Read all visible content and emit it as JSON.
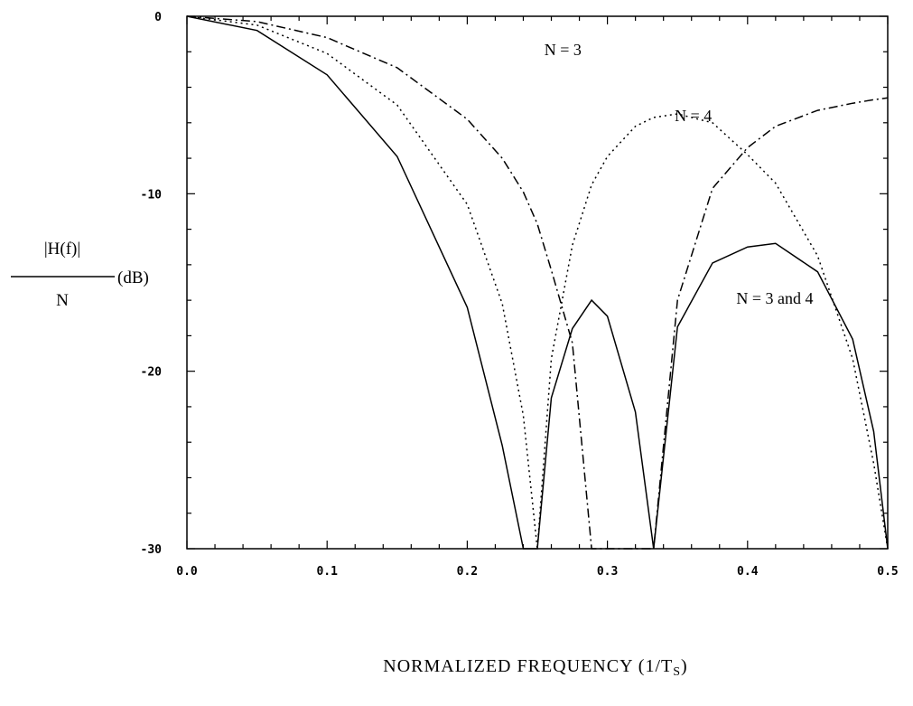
{
  "chart_data": {
    "type": "line",
    "title": "",
    "xlabel": "NORMALIZED FREQUENCY (1/Ts)",
    "xlabel_main": "NORMALIZED FREQUENCY ",
    "xlabel_paren_open": "(1/T",
    "xlabel_sub": "S",
    "xlabel_paren_close": ")",
    "ylabel": "|H(f)|/N (dB)",
    "ylabel_numerator": "|H(f)|",
    "ylabel_denominator": "N",
    "ylabel_unit": "(dB)",
    "xlim": [
      0.0,
      0.5
    ],
    "ylim": [
      -30,
      0
    ],
    "x_major_ticks": [
      0.0,
      0.1,
      0.2,
      0.3,
      0.4,
      0.5
    ],
    "x_tick_labels": [
      "0.0",
      "0.1",
      "0.2",
      "0.3",
      "0.4",
      "0.5"
    ],
    "x_minor_step": 0.02,
    "y_major_ticks": [
      0,
      -10,
      -20,
      -30
    ],
    "y_tick_labels": [
      "0",
      "-10",
      "-20",
      "-30"
    ],
    "y_minor_step": 2,
    "grid": false,
    "legend": "none",
    "annotations": [
      {
        "text": "N = 3",
        "x": 0.255,
        "y": -2.2
      },
      {
        "text": "N = 4",
        "x": 0.348,
        "y": -5.9
      },
      {
        "text": "N = 3 and 4",
        "x": 0.392,
        "y": -16.2
      }
    ],
    "x": [
      0.0,
      0.05,
      0.1,
      0.15,
      0.2,
      0.225,
      0.24,
      0.25,
      0.26,
      0.275,
      0.2887,
      0.3,
      0.32,
      0.333,
      0.35,
      0.375,
      0.4,
      0.42,
      0.45,
      0.475,
      0.49,
      0.5
    ],
    "series": [
      {
        "style": "dash-dot",
        "values": [
          0.0,
          -0.3,
          -1.2,
          -2.9,
          -5.8,
          -8.0,
          -9.9,
          -11.7,
          -14.3,
          -18.4,
          -30.0,
          -30.0,
          -30.0,
          -30.0,
          -16.0,
          -9.7,
          -7.4,
          -6.2,
          -5.3,
          -4.9,
          -4.7,
          -4.6
        ]
      },
      {
        "style": "dotted",
        "values": [
          0.0,
          -0.5,
          -2.1,
          -5.0,
          -10.6,
          -16.2,
          -22.5,
          -30.0,
          -19.3,
          -12.9,
          -9.5,
          -7.9,
          -6.2,
          -5.7,
          -5.5,
          -6.0,
          -7.8,
          -9.4,
          -13.5,
          -19.3,
          -25.2,
          -30.0
        ]
      },
      {
        "style": "solid",
        "values": [
          0.0,
          -0.8,
          -3.3,
          -7.9,
          -16.4,
          -24.2,
          -30.0,
          -30.0,
          -21.5,
          -17.6,
          -16.0,
          -16.9,
          -22.3,
          -30.0,
          -17.5,
          -13.9,
          -13.0,
          -12.8,
          -14.4,
          -18.2,
          -23.4,
          -30.0
        ]
      }
    ]
  }
}
